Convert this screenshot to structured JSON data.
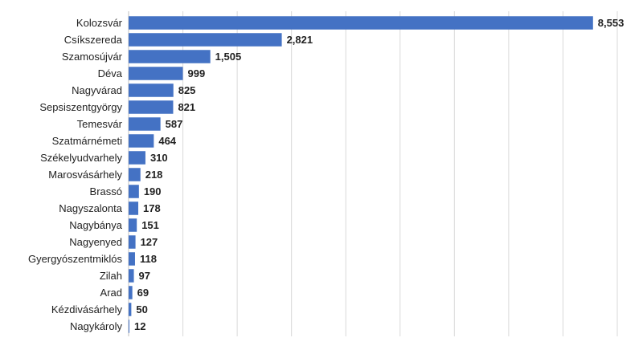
{
  "chart_data": {
    "type": "bar",
    "orientation": "horizontal",
    "title": "",
    "xlabel": "",
    "ylabel": "",
    "xlim": [
      0,
      9000
    ],
    "grid": true,
    "legend": "none",
    "bar_color": "#4472C4",
    "categories": [
      "Kolozsvár",
      "Csíkszereda",
      "Szamosújvár",
      "Déva",
      "Nagyvárad",
      "Sepsiszentgyörgy",
      "Temesvár",
      "Szatmárnémeti",
      "Székelyudvarhely",
      "Marosvásárhely",
      "Brassó",
      "Nagyszalonta",
      "Nagybánya",
      "Nagyenyed",
      "Gyergyószentmiklós",
      "Zilah",
      "Arad",
      "Kézdivásárhely",
      "Nagykároly"
    ],
    "values": [
      8553,
      2821,
      1505,
      999,
      825,
      821,
      587,
      464,
      310,
      218,
      190,
      178,
      151,
      127,
      118,
      97,
      69,
      50,
      12
    ],
    "value_labels": [
      "8,553",
      "2,821",
      "1,505",
      "999",
      "825",
      "821",
      "587",
      "464",
      "310",
      "218",
      "190",
      "178",
      "151",
      "127",
      "118",
      "97",
      "69",
      "50",
      "12"
    ]
  }
}
